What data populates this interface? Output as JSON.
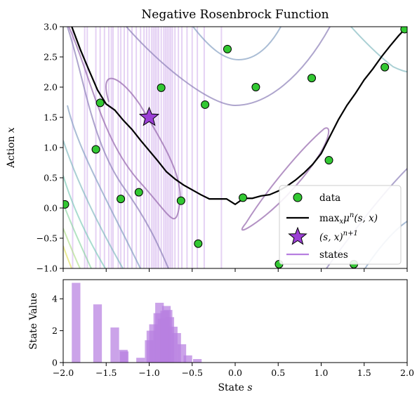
{
  "chart_data": [
    {
      "type": "scatter",
      "title": "Negative Rosenbrock Function",
      "ylabel": "Action x",
      "xlim": [
        -2.0,
        2.0
      ],
      "ylim": [
        -1.0,
        3.0
      ],
      "x_ticks": [
        "−2.0",
        "−1.5",
        "−1.0",
        "−0.5",
        "0.0",
        "0.5",
        "1.0",
        "1.5",
        "2.0"
      ],
      "y_ticks": [
        "−1.0",
        "−0.5",
        "0.0",
        "0.5",
        "1.0",
        "1.5",
        "2.0",
        "2.5",
        "3.0"
      ],
      "legend_position": "lower-right",
      "legend": [
        {
          "key": "data",
          "label": "data"
        },
        {
          "key": "max",
          "label": "max"
        },
        {
          "key": "next",
          "label": "(s,x)"
        },
        {
          "key": "states",
          "label": "states"
        }
      ],
      "legend_math": {
        "max_main": "max",
        "max_sub": "x",
        "max_mu": "μ",
        "max_sup": "n",
        "max_args": "(s, x)",
        "next_args": "(s, x)",
        "next_sup": "n+1"
      },
      "colors": {
        "data": "#32c832",
        "max_line": "#000000",
        "star": "#9b3fd6",
        "states": "#b77fe0"
      },
      "data_points": [
        [
          -1.98,
          0.06
        ],
        [
          -1.62,
          0.97
        ],
        [
          -1.57,
          1.74
        ],
        [
          -1.33,
          0.15
        ],
        [
          -1.12,
          0.26
        ],
        [
          -0.86,
          1.99
        ],
        [
          -0.63,
          0.12
        ],
        [
          -0.43,
          -0.59
        ],
        [
          -0.35,
          1.71
        ],
        [
          -0.09,
          2.63
        ],
        [
          0.09,
          0.17
        ],
        [
          0.24,
          2.0
        ],
        [
          0.51,
          -0.93
        ],
        [
          0.89,
          2.15
        ],
        [
          1.09,
          0.79
        ],
        [
          1.38,
          -0.93
        ],
        [
          1.74,
          2.33
        ],
        [
          1.97,
          2.96
        ]
      ],
      "max_line": {
        "x": [
          -1.9,
          -1.8,
          -1.7,
          -1.6,
          -1.5,
          -1.4,
          -1.3,
          -1.2,
          -1.1,
          -1.0,
          -0.9,
          -0.8,
          -0.7,
          -0.6,
          -0.5,
          -0.4,
          -0.3,
          -0.2,
          -0.1,
          0.0,
          0.1,
          0.2,
          0.3,
          0.4,
          0.5,
          0.6,
          0.7,
          0.8,
          0.9,
          1.0,
          1.1,
          1.2,
          1.3,
          1.4,
          1.5,
          1.6,
          1.7,
          1.8,
          1.9,
          2.0
        ],
        "y": [
          3.0,
          2.62,
          2.28,
          1.95,
          1.72,
          1.62,
          1.45,
          1.3,
          1.12,
          0.95,
          0.78,
          0.6,
          0.48,
          0.38,
          0.3,
          0.22,
          0.15,
          0.15,
          0.15,
          0.06,
          0.16,
          0.16,
          0.2,
          0.22,
          0.28,
          0.36,
          0.46,
          0.58,
          0.72,
          0.9,
          1.18,
          1.46,
          1.7,
          1.9,
          2.12,
          2.3,
          2.5,
          2.68,
          2.85,
          3.0
        ]
      },
      "star": [
        -1.0,
        1.5
      ],
      "state_lines_x": [
        -1.89,
        -1.75,
        -1.72,
        -1.62,
        -1.57,
        -1.52,
        -1.47,
        -1.44,
        -1.42,
        -1.36,
        -1.33,
        -1.29,
        -1.25,
        -1.2,
        -1.15,
        -1.1,
        -1.06,
        -1.03,
        -1.0,
        -0.97,
        -0.95,
        -0.93,
        -0.91,
        -0.89,
        -0.86,
        -0.83,
        -0.81,
        -0.79,
        -0.77,
        -0.75,
        -0.73,
        -0.7,
        -0.66,
        -0.62,
        -0.56,
        -0.5,
        -0.44,
        -0.36,
        -0.16
      ]
    },
    {
      "type": "bar",
      "xlabel": "State s",
      "ylabel": "State Value",
      "xlim": [
        -2.0,
        2.0
      ],
      "ylim": [
        0,
        5.2
      ],
      "x_ticks": [
        "−2.0",
        "−1.5",
        "−1.0",
        "−0.5",
        "0.0",
        "0.5",
        "1.0",
        "1.5",
        "2.0"
      ],
      "y_ticks": [
        "0",
        "2",
        "4"
      ],
      "bar_width": 0.1,
      "bars": [
        {
          "x": -1.85,
          "value": 5.0
        },
        {
          "x": -1.6,
          "value": 3.65
        },
        {
          "x": -1.4,
          "value": 2.2
        },
        {
          "x": -1.3,
          "value": 0.8
        },
        {
          "x": -1.29,
          "value": 0.7
        },
        {
          "x": -1.1,
          "value": 0.3
        },
        {
          "x": -1.0,
          "value": 1.4
        },
        {
          "x": -0.98,
          "value": 2.0
        },
        {
          "x": -0.95,
          "value": 2.4
        },
        {
          "x": -0.9,
          "value": 3.1
        },
        {
          "x": -0.88,
          "value": 3.75
        },
        {
          "x": -0.85,
          "value": 2.75
        },
        {
          "x": -0.82,
          "value": 3.25
        },
        {
          "x": -0.8,
          "value": 3.55
        },
        {
          "x": -0.78,
          "value": 3.3
        },
        {
          "x": -0.76,
          "value": 2.85
        },
        {
          "x": -0.72,
          "value": 2.25
        },
        {
          "x": -0.68,
          "value": 1.85
        },
        {
          "x": -0.62,
          "value": 1.15
        },
        {
          "x": -0.55,
          "value": 0.45
        },
        {
          "x": -0.44,
          "value": 0.22
        }
      ]
    }
  ]
}
